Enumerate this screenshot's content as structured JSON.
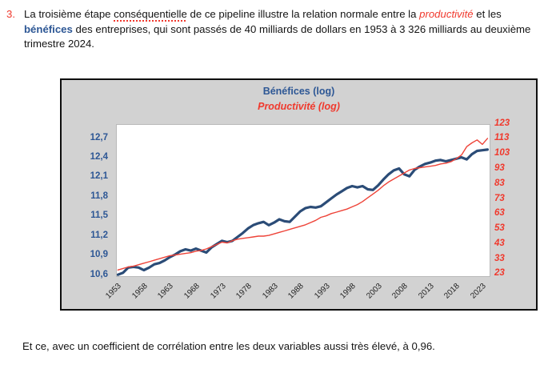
{
  "paragraph": {
    "number": "3.",
    "segments": [
      {
        "t": "La troisième étape ",
        "s": "normal"
      },
      {
        "t": "conséquentielle",
        "s": "misspelled"
      },
      {
        "t": " de ce pipeline illustre la relation normale entre la ",
        "s": "normal"
      },
      {
        "t": "productivité",
        "s": "red-italic"
      },
      {
        "t": " et les ",
        "s": "normal"
      },
      {
        "t": "bénéfices",
        "s": "blue-bold"
      },
      {
        "t": " des entreprises, qui sont passés de 40 milliards de dollars en 1953 à 3 326 milliards au deuxième trimestre 2024.",
        "s": "normal"
      }
    ]
  },
  "chart": {
    "title_primary": "Bénéfices (log)",
    "title_secondary": "Productivité (log)"
  },
  "chart_data": {
    "type": "line",
    "title": "Bénéfices (log) et Productivité (log), 1953-2024",
    "legend": [
      "Bénéfices (log)",
      "Productivité (log)"
    ],
    "grid": false,
    "years": [
      1953,
      1954,
      1955,
      1956,
      1957,
      1958,
      1959,
      1960,
      1961,
      1962,
      1963,
      1964,
      1965,
      1966,
      1967,
      1968,
      1969,
      1970,
      1971,
      1972,
      1973,
      1974,
      1975,
      1976,
      1977,
      1978,
      1979,
      1980,
      1981,
      1982,
      1983,
      1984,
      1985,
      1986,
      1987,
      1988,
      1989,
      1990,
      1991,
      1992,
      1993,
      1994,
      1995,
      1996,
      1997,
      1998,
      1999,
      2000,
      2001,
      2002,
      2003,
      2004,
      2005,
      2006,
      2007,
      2008,
      2009,
      2010,
      2011,
      2012,
      2013,
      2014,
      2015,
      2016,
      2017,
      2018,
      2019,
      2020,
      2021,
      2022,
      2023,
      2024
    ],
    "x_axis": {
      "min": 1952.8,
      "max": 2024.4,
      "tick_years": [
        1953,
        1958,
        1963,
        1968,
        1973,
        1978,
        1983,
        1988,
        1993,
        1998,
        2003,
        2008,
        2013,
        2018,
        2023
      ]
    },
    "left_axis": {
      "label": "Bénéfices (log)",
      "min": 10.588,
      "max": 12.909,
      "ticks": [
        {
          "label": "12,7",
          "v": 12.7
        },
        {
          "label": "12,4",
          "v": 12.4
        },
        {
          "label": "12,1",
          "v": 12.1
        },
        {
          "label": "11,8",
          "v": 11.8
        },
        {
          "label": "11,5",
          "v": 11.5
        },
        {
          "label": "11,2",
          "v": 11.2
        },
        {
          "label": "10,9",
          "v": 10.9
        },
        {
          "label": "10,6",
          "v": 10.6
        }
      ]
    },
    "right_axis": {
      "label": "Productivité (log)",
      "min": 21.9,
      "max": 122.5,
      "ticks": [
        {
          "label": "123",
          "v": 123
        },
        {
          "label": "113",
          "v": 113
        },
        {
          "label": "103",
          "v": 103
        },
        {
          "label": "93",
          "v": 93
        },
        {
          "label": "83",
          "v": 83
        },
        {
          "label": "73",
          "v": 73
        },
        {
          "label": "63",
          "v": 63
        },
        {
          "label": "53",
          "v": 53
        },
        {
          "label": "43",
          "v": 43
        },
        {
          "label": "33",
          "v": 33
        },
        {
          "label": "23",
          "v": 23
        }
      ]
    },
    "series": [
      {
        "id": "benefices",
        "name": "Bénéfices (log)",
        "axis": "left",
        "color": "#2b4c77",
        "stroke_width": 3.2,
        "values": [
          10.61,
          10.64,
          10.72,
          10.73,
          10.72,
          10.68,
          10.72,
          10.77,
          10.79,
          10.83,
          10.88,
          10.92,
          10.97,
          11.0,
          10.98,
          11.01,
          10.98,
          10.95,
          11.03,
          11.08,
          11.13,
          11.11,
          11.13,
          11.19,
          11.25,
          11.32,
          11.37,
          11.4,
          11.42,
          11.37,
          11.41,
          11.46,
          11.43,
          11.42,
          11.5,
          11.58,
          11.63,
          11.65,
          11.64,
          11.66,
          11.72,
          11.78,
          11.84,
          11.89,
          11.94,
          11.97,
          11.95,
          11.97,
          11.92,
          11.91,
          11.98,
          12.07,
          12.15,
          12.21,
          12.24,
          12.15,
          12.12,
          12.22,
          12.27,
          12.31,
          12.33,
          12.36,
          12.37,
          12.35,
          12.37,
          12.39,
          12.41,
          12.38,
          12.46,
          12.51,
          12.52,
          12.53
        ]
      },
      {
        "id": "productivite",
        "name": "Productivité (log)",
        "axis": "right",
        "color": "#ee4338",
        "stroke_width": 1.4,
        "values": [
          26,
          27,
          28,
          28.5,
          29.5,
          30.5,
          31.5,
          32.5,
          33.5,
          34.5,
          35.5,
          36,
          36.5,
          37,
          37.5,
          38.5,
          39,
          40,
          41.5,
          43,
          44.5,
          44,
          45.5,
          46.5,
          47,
          47.5,
          48,
          48.5,
          48.5,
          49,
          50,
          51,
          52,
          53,
          54,
          55,
          56,
          57.5,
          59,
          61,
          62,
          63.5,
          64.5,
          65.5,
          66.5,
          68,
          69.5,
          71.5,
          74,
          76.5,
          79,
          82,
          84.5,
          86.5,
          88.5,
          90.5,
          92.5,
          93.5,
          94,
          94.5,
          95,
          95.5,
          96.5,
          97,
          98,
          100,
          102.5,
          108,
          110.5,
          112.5,
          109.5,
          113.5
        ]
      }
    ]
  },
  "footer": {
    "text": "Et ce, avec un coefficient de corrélation entre les deux variables aussi très élevé, à 0,96."
  },
  "colors": {
    "accent_red": "#f0392d",
    "accent_blue": "#2d5795",
    "line_blue": "#2b4c77",
    "line_red": "#ee4338",
    "chart_background": "#d2d2d2"
  }
}
